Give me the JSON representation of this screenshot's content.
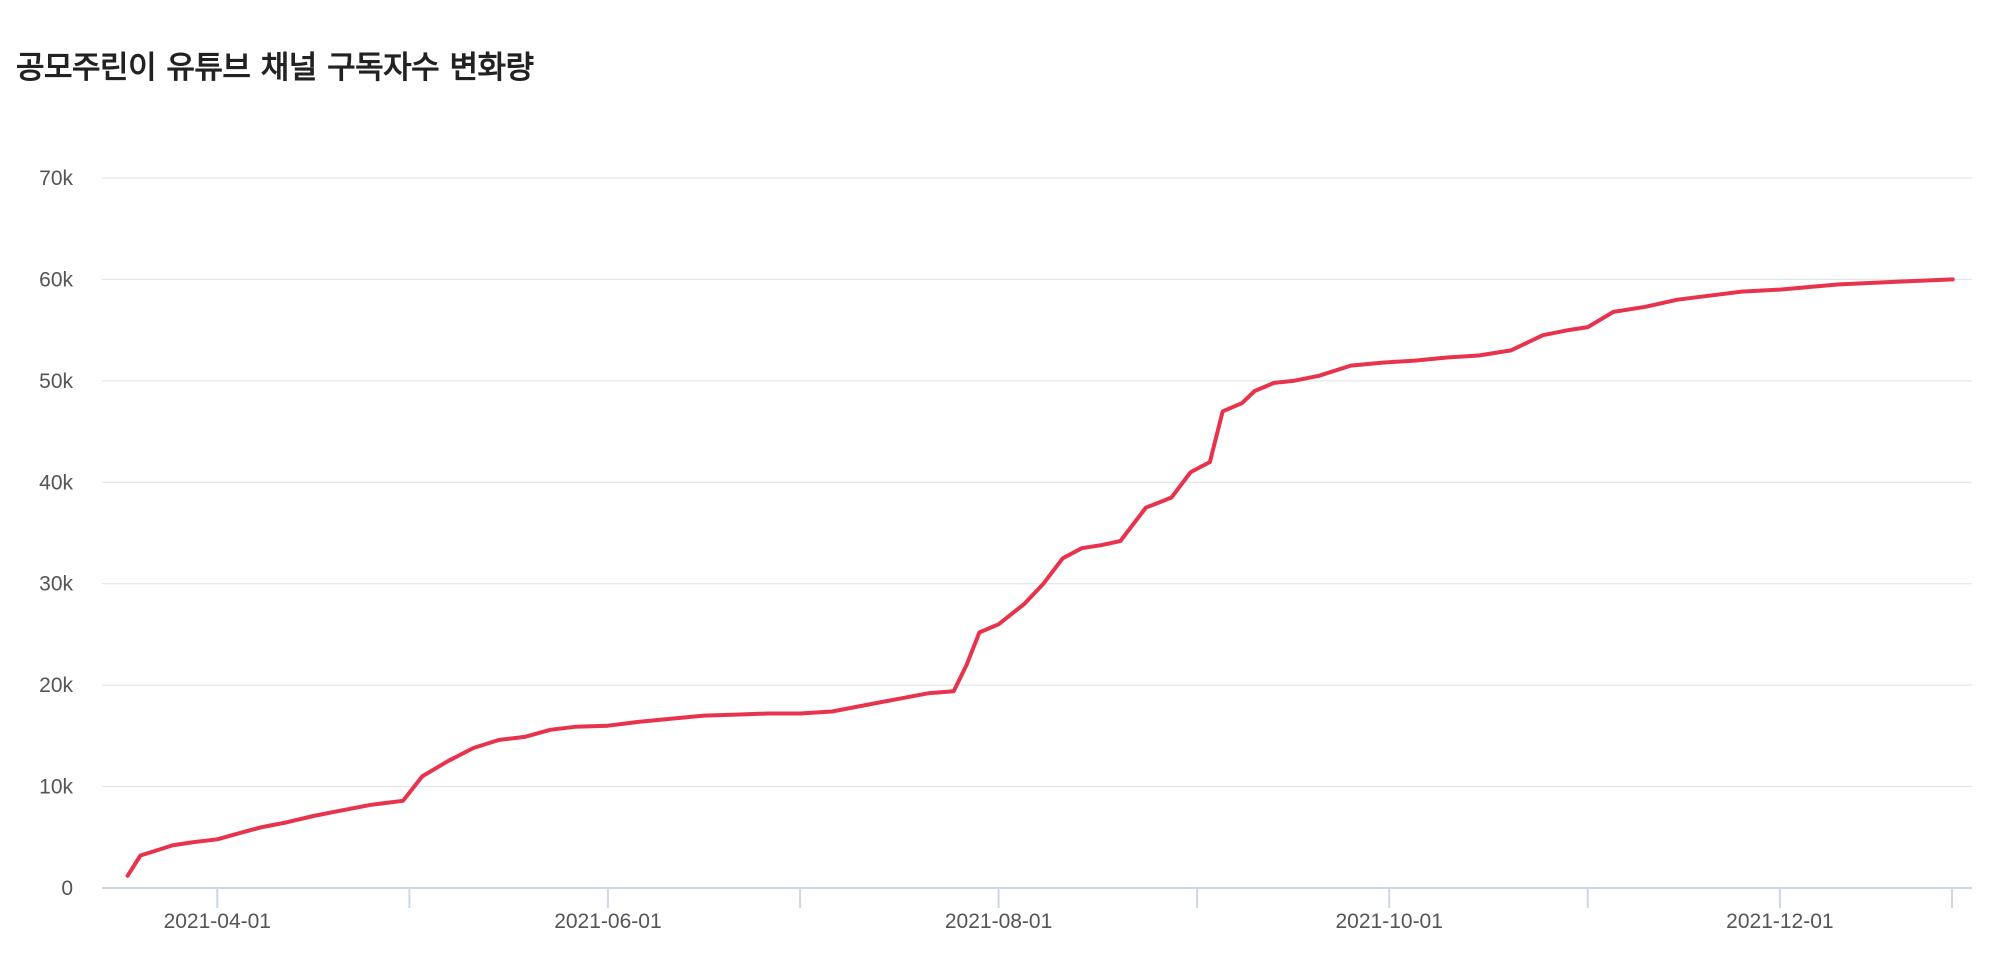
{
  "chart_data": {
    "type": "line",
    "title": "공모주린이 유튜브 채널 구독자수 변화량",
    "xlabel": "",
    "ylabel": "",
    "ylim": [
      0,
      70000
    ],
    "yticks": [
      0,
      10000,
      20000,
      30000,
      40000,
      50000,
      60000,
      70000
    ],
    "ytick_labels": [
      "0",
      "10k",
      "20k",
      "30k",
      "40k",
      "50k",
      "60k",
      "70k"
    ],
    "xlim": [
      "2021-03-14",
      "2021-12-31"
    ],
    "xticks": [
      "2021-04-01",
      "2021-06-01",
      "2021-08-01",
      "2021-10-01",
      "2021-12-01"
    ],
    "minor_xticks": [
      "2021-05-01",
      "2021-07-01",
      "2021-09-01",
      "2021-11-01",
      "2022-01-01"
    ],
    "grid": "horizontal",
    "line_color": "#e8334d",
    "series": [
      {
        "x": [
          "2021-03-18",
          "2021-03-20",
          "2021-03-22",
          "2021-03-25",
          "2021-03-28",
          "2021-04-01",
          "2021-04-05",
          "2021-04-08",
          "2021-04-12",
          "2021-04-16",
          "2021-04-20",
          "2021-04-25",
          "2021-04-30",
          "2021-05-03",
          "2021-05-07",
          "2021-05-11",
          "2021-05-15",
          "2021-05-19",
          "2021-05-23",
          "2021-05-27",
          "2021-06-01",
          "2021-06-06",
          "2021-06-11",
          "2021-06-16",
          "2021-06-21",
          "2021-06-26",
          "2021-07-01",
          "2021-07-06",
          "2021-07-11",
          "2021-07-16",
          "2021-07-21",
          "2021-07-25",
          "2021-07-27",
          "2021-07-29",
          "2021-08-01",
          "2021-08-05",
          "2021-08-08",
          "2021-08-11",
          "2021-08-14",
          "2021-08-17",
          "2021-08-20",
          "2021-08-24",
          "2021-08-26",
          "2021-08-28",
          "2021-08-31",
          "2021-09-03",
          "2021-09-05",
          "2021-09-08",
          "2021-09-10",
          "2021-09-13",
          "2021-09-16",
          "2021-09-20",
          "2021-09-25",
          "2021-09-30",
          "2021-10-05",
          "2021-10-10",
          "2021-10-15",
          "2021-10-20",
          "2021-10-25",
          "2021-10-29",
          "2021-11-01",
          "2021-11-05",
          "2021-11-10",
          "2021-11-15",
          "2021-11-20",
          "2021-11-25",
          "2021-12-01",
          "2021-12-10",
          "2021-12-20",
          "2021-12-28"
        ],
        "values": [
          1200,
          3200,
          3600,
          4200,
          4500,
          4800,
          5500,
          6000,
          6500,
          7100,
          7600,
          8200,
          8600,
          11000,
          12500,
          13800,
          14600,
          14900,
          15600,
          15900,
          16000,
          16400,
          16700,
          17000,
          17100,
          17200,
          17200,
          17400,
          18000,
          18600,
          19200,
          19400,
          22000,
          25200,
          26000,
          28000,
          30000,
          32500,
          33500,
          33800,
          34200,
          37500,
          38000,
          38500,
          41000,
          42000,
          47000,
          47800,
          49000,
          49800,
          50000,
          50500,
          51500,
          51800,
          52000,
          52300,
          52500,
          53000,
          54500,
          55000,
          55300,
          56800,
          57300,
          58000,
          58400,
          58800,
          59000,
          59500,
          59800,
          60000
        ]
      }
    ]
  }
}
